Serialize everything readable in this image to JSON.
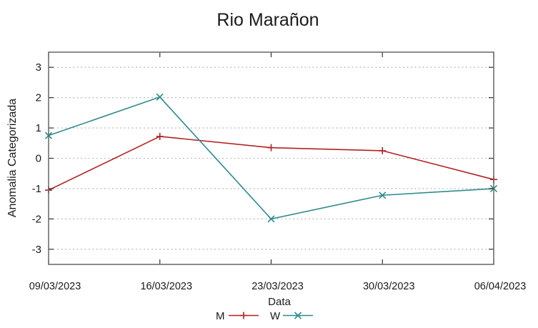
{
  "window": {
    "background": "#ffffff"
  },
  "colors": {
    "background": "#ffffff",
    "text": "#1a1a1a",
    "axis_border": "#666666",
    "tick": "#333333",
    "grid": "#b4b4b4",
    "series_m_red": "#b22222",
    "series_w_teal": "#2e8b8b"
  },
  "chart_data": {
    "type": "line",
    "title": "Rio Marañon",
    "xlabel": "Data",
    "ylabel": "Anomalia Categorizada",
    "x_tick_labels": [
      "09/03/2023",
      "16/03/2023",
      "23/03/2023",
      "30/03/2023",
      "06/04/2023"
    ],
    "y_ticks": [
      -3,
      -2,
      -1,
      0,
      1,
      2,
      3
    ],
    "ylim": [
      -3.5,
      3.5
    ],
    "grid": true,
    "grid_style": "dotted",
    "legend_position": "bottom-center",
    "series": [
      {
        "name": "M",
        "color": "#b22222",
        "marker": "plus",
        "values": [
          -1.05,
          0.72,
          0.35,
          0.25,
          -0.7
        ]
      },
      {
        "name": "W",
        "color": "#2e8b8b",
        "marker": "cross",
        "values": [
          0.75,
          2.02,
          -2.0,
          -1.22,
          -1.0
        ]
      }
    ]
  }
}
